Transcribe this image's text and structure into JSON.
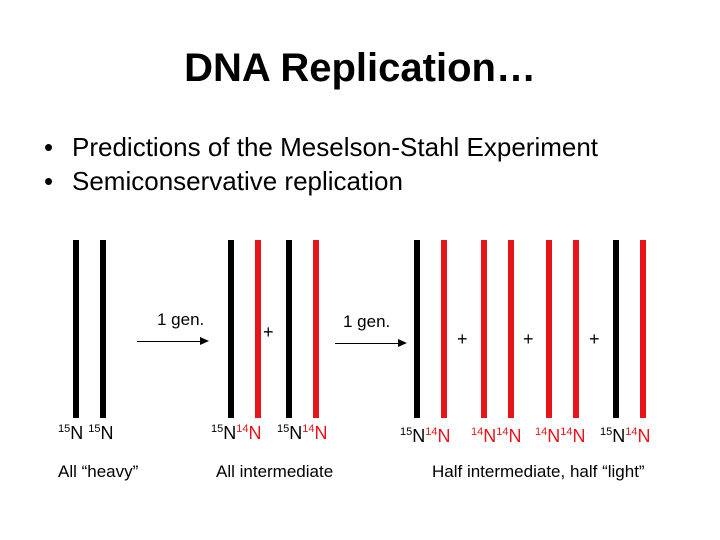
{
  "title": "DNA Replication…",
  "bullets": [
    "Predictions of the Meselson-Stahl Experiment",
    "Semiconservative replication"
  ],
  "bullet_glyph": "•",
  "colors": {
    "heavy": "#000000",
    "light": "#e8141c"
  },
  "arrows": [
    {
      "label": "1 gen."
    },
    {
      "label": "1 gen."
    }
  ],
  "plus": "+",
  "molecules": [
    {
      "strands": [
        "heavy",
        "heavy"
      ],
      "label": {
        "a": "15",
        "b": "N ",
        "c": "15",
        "d": "N"
      }
    },
    {
      "strands": [
        "heavy",
        "light"
      ],
      "label": {
        "a": "15",
        "b": "N",
        "c": "14",
        "d": "N"
      }
    },
    {
      "strands": [
        "heavy",
        "light"
      ],
      "label": {
        "a": "15",
        "b": "N",
        "c": "14",
        "d": "N"
      }
    },
    {
      "strands": [
        "heavy",
        "light"
      ],
      "label": {
        "a": "15",
        "b": "N",
        "c": "14",
        "d": "N"
      }
    },
    {
      "strands": [
        "light",
        "light"
      ],
      "label": {
        "a": "14",
        "b": "N",
        "c": "14",
        "d": "N"
      }
    },
    {
      "strands": [
        "light",
        "light"
      ],
      "label": {
        "a": "14",
        "b": "N",
        "c": "14",
        "d": "N"
      }
    },
    {
      "strands": [
        "heavy",
        "light"
      ],
      "label": {
        "a": "15",
        "b": "N",
        "c": "14",
        "d": "N"
      }
    }
  ],
  "captions": {
    "heavy": "All “heavy”",
    "intermediate": "All intermediate",
    "half": "Half intermediate, half “light”"
  }
}
